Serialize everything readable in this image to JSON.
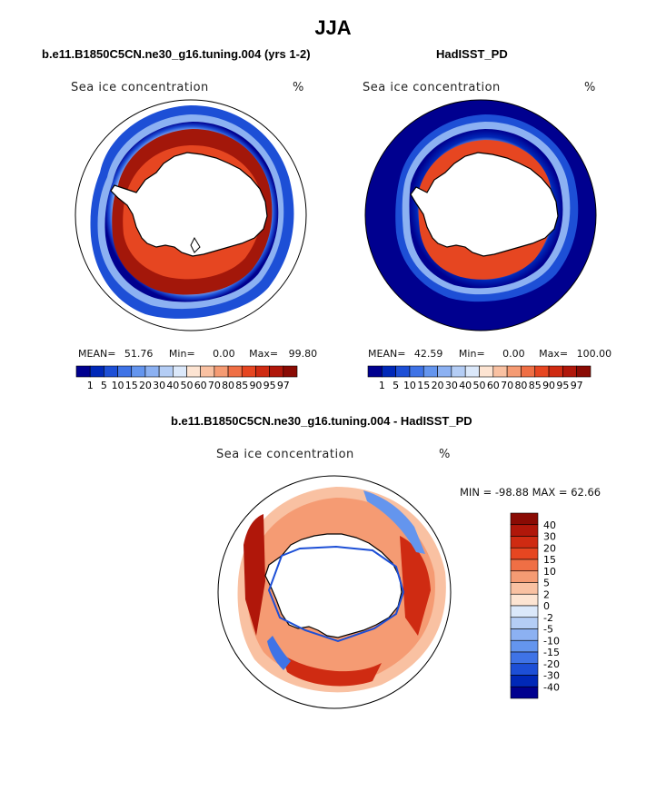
{
  "title": "JJA",
  "palette_full": [
    "#00008f",
    "#0028b8",
    "#1d4fd6",
    "#3f73e6",
    "#6495ee",
    "#8cb1f2",
    "#b4cdf5",
    "#dbe8fa",
    "#fde4d2",
    "#f9c1a2",
    "#f59b73",
    "#ef6f45",
    "#e64621",
    "#cf2b12",
    "#b0170a",
    "#8a0b04"
  ],
  "panels": {
    "model": {
      "title": "b.e11.B1850C5CN.ne30_g16.tuning.004 (yrs 1-2)",
      "field_label": "Sea ice concentration",
      "units": "%",
      "stats": {
        "mean_label": "MEAN=",
        "mean": "51.76",
        "min_label": "Min=",
        "min": "0.00",
        "max_label": "Max=",
        "max": "99.80"
      }
    },
    "obs": {
      "title": "HadISST_PD",
      "field_label": "Sea ice concentration",
      "units": "%",
      "stats": {
        "mean_label": "MEAN=",
        "mean": "42.59",
        "min_label": "Min=",
        "min": "0.00",
        "max_label": "Max=",
        "max": "100.00"
      }
    },
    "diff": {
      "title": "b.e11.B1850C5CN.ne30_g16.tuning.004 - HadISST_PD",
      "field_label": "Sea ice concentration",
      "units": "%",
      "minmax": "MIN = -98.88 MAX =   62.66"
    }
  },
  "colorbar_levels": [
    "1",
    "5",
    "10",
    "15",
    "20",
    "30",
    "40",
    "50",
    "60",
    "70",
    "80",
    "85",
    "90",
    "95",
    "97"
  ],
  "diff_colorbar_levels": [
    "40",
    "30",
    "20",
    "15",
    "10",
    "5",
    "2",
    "0",
    "-2",
    "-5",
    "-10",
    "-15",
    "-20",
    "-30",
    "-40"
  ]
}
